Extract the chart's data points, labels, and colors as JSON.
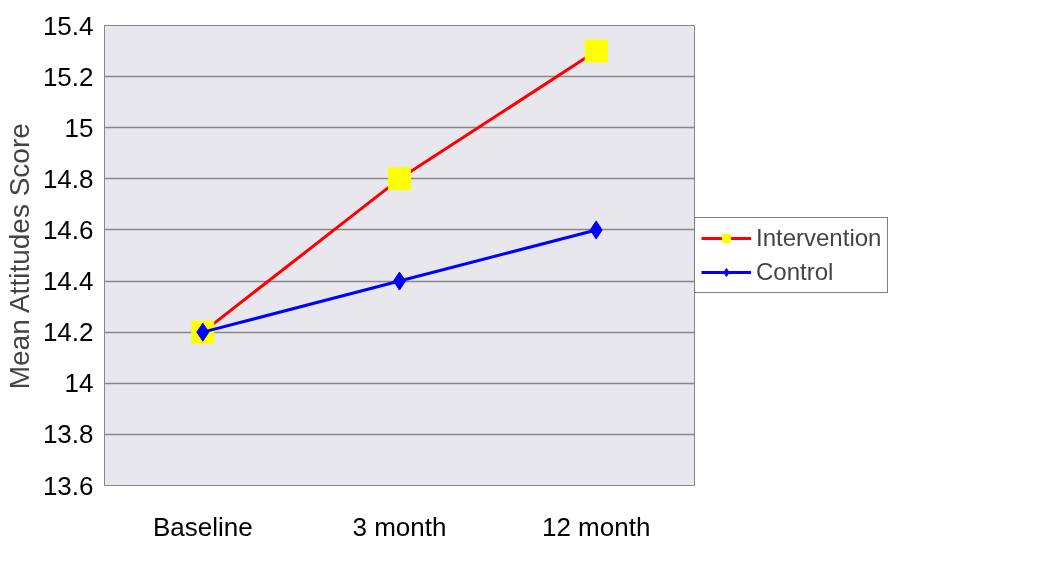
{
  "chart_data": {
    "type": "line",
    "ylabel": "Mean Attitudes Score",
    "categories": [
      "Baseline",
      "3 month",
      "12 month"
    ],
    "series": [
      {
        "name": "Intervention",
        "color": "#ff0000",
        "colors": [
          "#ffff00",
          "#ffff00",
          "#ffff00"
        ],
        "marker": "square",
        "values": [
          14.2,
          14.8,
          15.3
        ]
      },
      {
        "name": "Control",
        "color": "#0000ff",
        "colors": [
          "#0000ff",
          "#0000ff",
          "#0000ff"
        ],
        "marker": "diamond",
        "values": [
          14.2,
          14.4,
          14.6
        ]
      }
    ],
    "ylim": [
      13.6,
      15.4
    ],
    "yticks": [
      13.6,
      13.8,
      14,
      14.2,
      14.4,
      14.6,
      14.8,
      15,
      15.2,
      15.4
    ],
    "grid": "y",
    "legend": "right"
  }
}
